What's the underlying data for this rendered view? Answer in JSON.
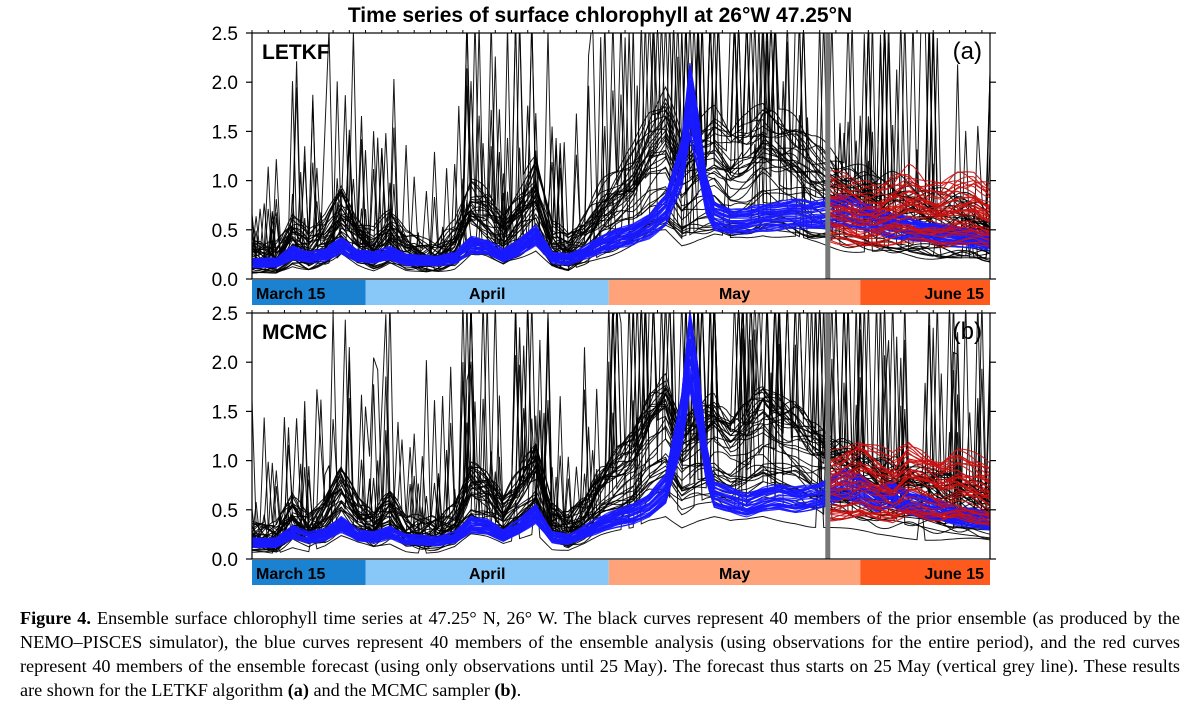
{
  "figure": {
    "title": "Time series of surface chlorophyll at 26°W 47.25°N",
    "caption": {
      "label": "Figure 4.",
      "text_1": " Ensemble surface chlorophyll time series at 47.25° N, 26° W. The black curves represent 40 members of the prior ensemble (as produced by the NEMO–PISCES simulator), the blue curves represent 40 members of the ensemble analysis (using observations for the entire period), and the red curves represent 40 members of the ensemble forecast (using only observations until 25 May). The forecast thus starts on 25 May (vertical grey line). These results are shown for the LETKF algorithm ",
      "ref_a": "(a)",
      "text_2": " and the MCMC sampler ",
      "ref_b": "(b)",
      "text_3": "."
    }
  },
  "colors": {
    "prior": "#000000",
    "analysis": "#1a1aff",
    "forecast": "#cc1111",
    "forecast_start_line": "#777777",
    "band_march": "#1a82d0",
    "band_april": "#87c8f8",
    "band_may": "#ffa37a",
    "band_june": "#ff5a1e"
  },
  "chart_data": [
    {
      "type": "line",
      "panel": "(a)",
      "method": "LETKF",
      "ylim": [
        0,
        2.5
      ],
      "yticks": [
        "0.0",
        "0.5",
        "1.0",
        "1.5",
        "2.0",
        "2.5"
      ],
      "xlim_day": [
        1,
        92
      ],
      "forecast_start_day": 72,
      "month_bands": [
        {
          "label": "March 15",
          "start": 1,
          "end": 15
        },
        {
          "label": "April",
          "start": 15,
          "end": 45
        },
        {
          "label": "May",
          "start": 45,
          "end": 76
        },
        {
          "label": "June 15",
          "start": 76,
          "end": 92
        }
      ],
      "prior_mean": {
        "x": [
          1,
          4,
          6,
          8,
          10,
          12,
          14,
          16,
          18,
          20,
          22,
          24,
          26,
          28,
          30,
          32,
          34,
          36,
          38,
          40,
          42,
          44,
          46,
          48,
          50,
          52,
          54,
          56,
          58,
          60,
          62,
          64,
          66,
          68,
          70,
          72,
          74,
          76,
          78,
          80,
          82,
          84,
          86,
          88,
          90,
          92
        ],
        "y": [
          0.15,
          0.15,
          0.3,
          0.2,
          0.28,
          0.45,
          0.3,
          0.22,
          0.32,
          0.2,
          0.18,
          0.18,
          0.25,
          0.48,
          0.42,
          0.3,
          0.45,
          0.6,
          0.25,
          0.2,
          0.3,
          0.45,
          0.55,
          0.65,
          0.85,
          0.95,
          0.7,
          0.8,
          0.85,
          0.75,
          0.8,
          0.9,
          0.85,
          0.8,
          0.7,
          0.65,
          0.6,
          0.55,
          0.5,
          0.5,
          0.48,
          0.45,
          0.42,
          0.4,
          0.38,
          0.35
        ]
      },
      "analysis_mean": {
        "x": [
          1,
          4,
          6,
          8,
          10,
          12,
          14,
          16,
          18,
          20,
          22,
          24,
          26,
          28,
          30,
          32,
          34,
          36,
          38,
          40,
          42,
          44,
          46,
          48,
          50,
          52,
          54,
          55,
          56,
          57,
          58,
          60,
          62,
          64,
          66,
          68,
          70,
          72,
          74,
          76,
          78,
          80,
          82,
          84,
          86,
          88,
          90,
          92
        ],
        "y": [
          0.15,
          0.15,
          0.25,
          0.2,
          0.22,
          0.32,
          0.22,
          0.2,
          0.24,
          0.18,
          0.17,
          0.17,
          0.2,
          0.32,
          0.3,
          0.22,
          0.3,
          0.42,
          0.2,
          0.18,
          0.25,
          0.32,
          0.38,
          0.42,
          0.5,
          0.65,
          1.1,
          1.7,
          1.3,
          0.8,
          0.6,
          0.55,
          0.55,
          0.58,
          0.6,
          0.62,
          0.6,
          0.62,
          0.65,
          0.6,
          0.55,
          0.5,
          0.48,
          0.45,
          0.42,
          0.4,
          0.38,
          0.35
        ]
      },
      "forecast_mean": {
        "x": [
          72,
          74,
          76,
          78,
          80,
          82,
          84,
          86,
          88,
          90,
          92
        ],
        "y": [
          0.62,
          0.6,
          0.55,
          0.55,
          0.6,
          0.65,
          0.6,
          0.55,
          0.6,
          0.62,
          0.55
        ]
      },
      "series": [
        {
          "name": "prior",
          "members": 40
        },
        {
          "name": "analysis",
          "members": 40
        },
        {
          "name": "forecast",
          "members": 40
        }
      ]
    },
    {
      "type": "line",
      "panel": "(b)",
      "method": "MCMC",
      "ylim": [
        0,
        2.5
      ],
      "yticks": [
        "0.0",
        "0.5",
        "1.0",
        "1.5",
        "2.0",
        "2.5"
      ],
      "xlim_day": [
        1,
        92
      ],
      "forecast_start_day": 72,
      "month_bands": [
        {
          "label": "March 15",
          "start": 1,
          "end": 15
        },
        {
          "label": "April",
          "start": 15,
          "end": 45
        },
        {
          "label": "May",
          "start": 45,
          "end": 76
        },
        {
          "label": "June 15",
          "start": 76,
          "end": 92
        }
      ],
      "prior_mean": {
        "x": [
          1,
          4,
          6,
          8,
          10,
          12,
          14,
          16,
          18,
          20,
          22,
          24,
          26,
          28,
          30,
          32,
          34,
          36,
          38,
          40,
          42,
          44,
          46,
          48,
          50,
          52,
          54,
          56,
          58,
          60,
          62,
          64,
          66,
          68,
          70,
          72,
          74,
          76,
          78,
          80,
          82,
          84,
          86,
          88,
          90,
          92
        ],
        "y": [
          0.15,
          0.15,
          0.3,
          0.2,
          0.28,
          0.45,
          0.3,
          0.22,
          0.32,
          0.2,
          0.18,
          0.18,
          0.25,
          0.48,
          0.42,
          0.3,
          0.45,
          0.6,
          0.25,
          0.2,
          0.3,
          0.45,
          0.55,
          0.65,
          0.85,
          0.95,
          0.7,
          0.8,
          0.85,
          0.75,
          0.8,
          0.9,
          0.85,
          0.8,
          0.7,
          0.65,
          0.6,
          0.55,
          0.5,
          0.5,
          0.48,
          0.45,
          0.42,
          0.4,
          0.38,
          0.35
        ]
      },
      "analysis_mean": {
        "x": [
          1,
          4,
          6,
          8,
          10,
          12,
          14,
          16,
          18,
          20,
          22,
          24,
          26,
          28,
          30,
          32,
          34,
          36,
          38,
          40,
          42,
          44,
          46,
          48,
          50,
          52,
          54,
          55,
          56,
          57,
          58,
          60,
          62,
          64,
          66,
          68,
          70,
          72,
          74,
          76,
          78,
          80,
          82,
          84,
          86,
          88,
          90,
          92
        ],
        "y": [
          0.15,
          0.15,
          0.25,
          0.2,
          0.22,
          0.32,
          0.22,
          0.2,
          0.24,
          0.18,
          0.17,
          0.17,
          0.2,
          0.32,
          0.3,
          0.22,
          0.3,
          0.42,
          0.2,
          0.18,
          0.25,
          0.32,
          0.38,
          0.42,
          0.5,
          0.65,
          1.3,
          1.95,
          1.5,
          0.9,
          0.6,
          0.55,
          0.5,
          0.55,
          0.58,
          0.55,
          0.58,
          0.62,
          0.7,
          0.65,
          0.55,
          0.6,
          0.52,
          0.48,
          0.45,
          0.4,
          0.38,
          0.35
        ]
      },
      "forecast_mean": {
        "x": [
          72,
          74,
          76,
          78,
          80,
          82,
          84,
          86,
          88,
          90,
          92
        ],
        "y": [
          0.62,
          0.65,
          0.7,
          0.65,
          0.6,
          0.7,
          0.65,
          0.6,
          0.65,
          0.6,
          0.55
        ]
      },
      "series": [
        {
          "name": "prior",
          "members": 40
        },
        {
          "name": "analysis",
          "members": 40
        },
        {
          "name": "forecast",
          "members": 40
        }
      ]
    }
  ]
}
